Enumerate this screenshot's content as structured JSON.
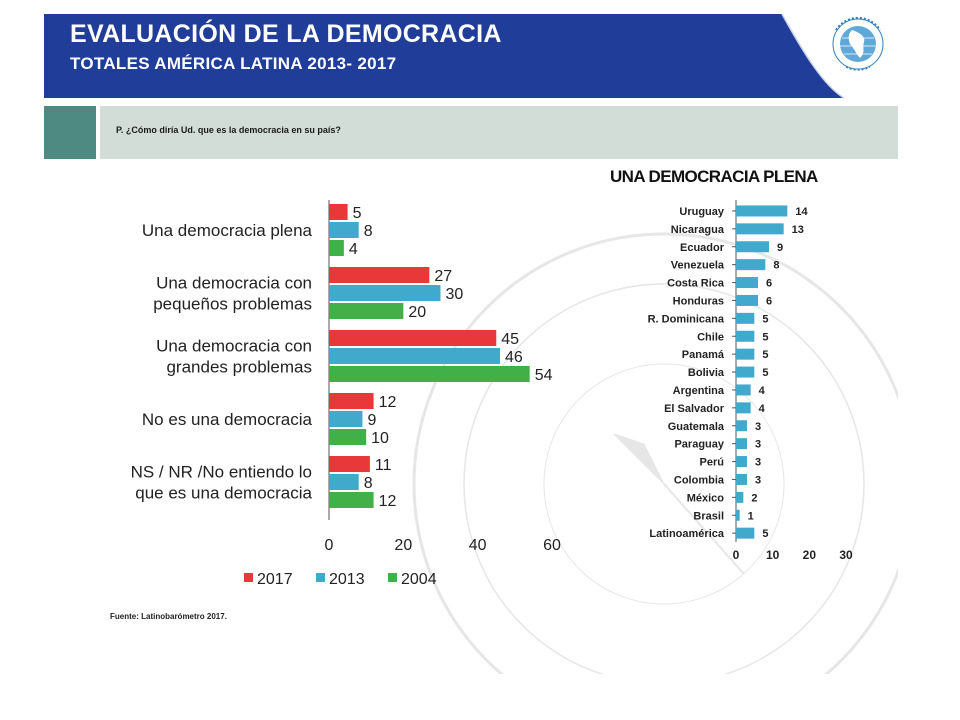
{
  "header": {
    "title": "EVALUACIÓN DE LA DEMOCRACIA",
    "subtitle": "TOTALES AMÉRICA LATINA 2013- 2017"
  },
  "question": "P. ¿Cómo diría Ud. que es la democracia en su país?",
  "source": "Fuente: Latinobarómetro 2017.",
  "colors": {
    "header_blue": "#1f3d99",
    "accent_teal": "#4e8a82",
    "question_bar": "#d3ddd8",
    "series_2017": "#e8383a",
    "series_2013": "#40a9cc",
    "series_2004": "#41b049"
  },
  "icons": [
    "latinobarometro-globe-logo"
  ],
  "chart_data": [
    {
      "type": "bar",
      "orientation": "horizontal",
      "categories": [
        [
          "Una democracia plena"
        ],
        [
          "Una democracia con",
          "pequeños problemas"
        ],
        [
          "Una democracia con",
          "grandes problemas"
        ],
        [
          "No es una democracia"
        ],
        [
          "NS / NR /No entiendo lo",
          "que es una democracia"
        ]
      ],
      "series": [
        {
          "name": "2017",
          "values": [
            5,
            27,
            45,
            12,
            11
          ]
        },
        {
          "name": "2013",
          "values": [
            8,
            30,
            46,
            9,
            8
          ]
        },
        {
          "name": "2004",
          "values": [
            4,
            20,
            54,
            10,
            12
          ]
        }
      ],
      "xlim": [
        0,
        60
      ],
      "xticks": [
        0,
        20,
        40,
        60
      ],
      "grid": false,
      "legend": "bottom"
    },
    {
      "type": "bar",
      "orientation": "horizontal",
      "title": "UNA DEMOCRACIA PLENA",
      "categories": [
        "Uruguay",
        "Nicaragua",
        "Ecuador",
        "Venezuela",
        "Costa Rica",
        "Honduras",
        "R. Dominicana",
        "Chile",
        "Panamá",
        "Bolivia",
        "Argentina",
        "El Salvador",
        "Guatemala",
        "Paraguay",
        "Perú",
        "Colombia",
        "México",
        "Brasil",
        "Latinoamérica"
      ],
      "values": [
        14,
        13,
        9,
        8,
        6,
        6,
        5,
        5,
        5,
        5,
        4,
        4,
        3,
        3,
        3,
        3,
        2,
        1,
        5
      ],
      "xlim": [
        0,
        30
      ],
      "xticks": [
        0,
        10,
        20,
        30
      ],
      "grid": false
    }
  ]
}
